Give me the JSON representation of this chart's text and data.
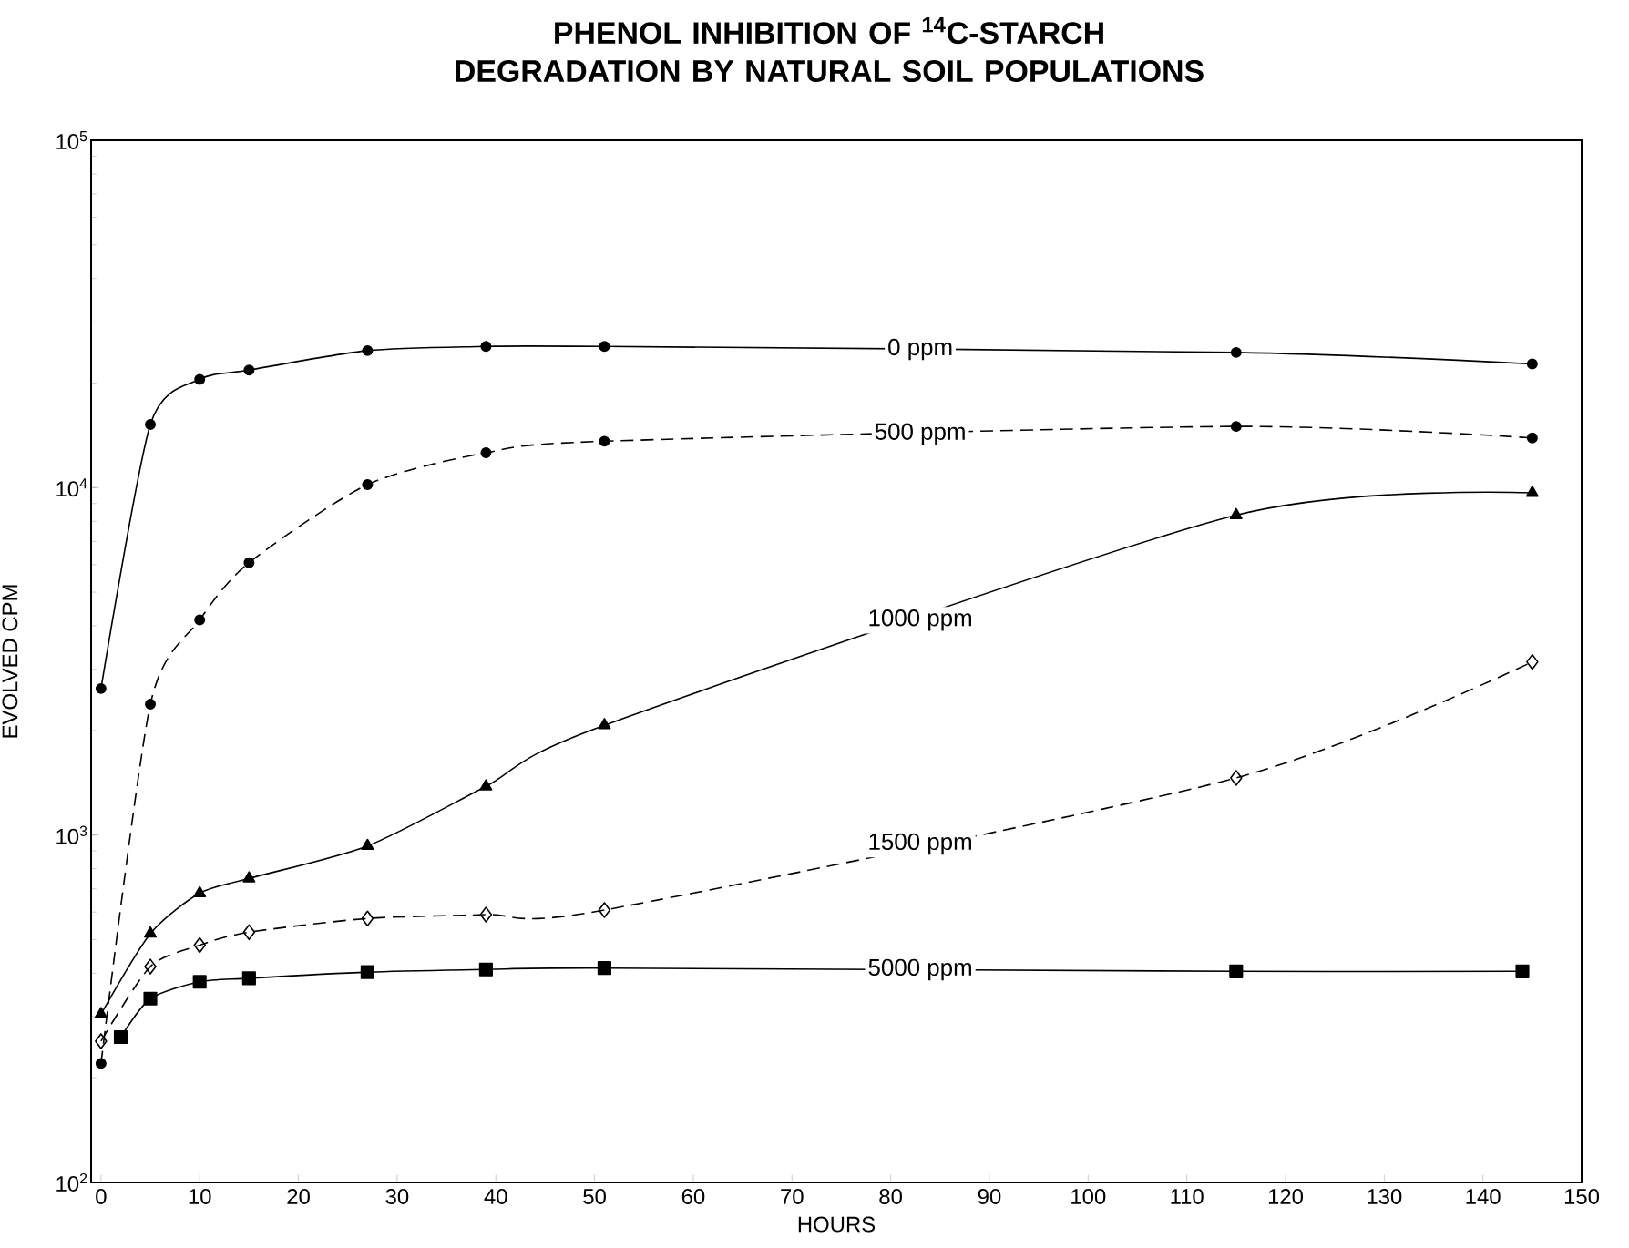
{
  "chart_data": {
    "type": "line",
    "title": "PHENOL INHIBITION OF $^{14}$C-STARCH DEGRADATION BY NATURAL SOIL POPULATIONS",
    "xlabel": "HOURS",
    "ylabel": "EVOLVED CPM",
    "log": "y",
    "grid": false,
    "legend": false,
    "xlim": [
      -1,
      150
    ],
    "xticks": [
      0,
      10,
      20,
      30,
      40,
      50,
      60,
      70,
      80,
      90,
      100,
      110,
      120,
      130,
      140,
      150
    ],
    "ylim": [
      100,
      100000
    ],
    "yticks": [
      {
        "value": 100,
        "label": "10$^{2}$"
      },
      {
        "value": 1000,
        "label": "10$^{3}$"
      },
      {
        "value": 10000,
        "label": "10$^{4}$"
      },
      {
        "value": 100000,
        "label": "10$^{5}$"
      }
    ],
    "series": [
      {
        "name": "0 ppm",
        "color": "#000000",
        "marker": "circle",
        "line_style": "solid",
        "x": [
          0,
          5,
          10,
          15,
          27,
          39,
          51,
          115,
          145
        ],
        "values": [
          2640,
          15200,
          20500,
          21800,
          24800,
          25500,
          25500,
          24500,
          22700
        ]
      },
      {
        "name": "500 ppm",
        "color": "#000000",
        "marker": "circle",
        "line_style": "dashed",
        "x": [
          0,
          5,
          10,
          15,
          27,
          39,
          51,
          115,
          145
        ],
        "values": [
          220,
          2380,
          4160,
          6080,
          10200,
          12600,
          13600,
          15000,
          13900
        ]
      },
      {
        "name": "1000 ppm",
        "color": "#000000",
        "marker": "triangle",
        "line_style": "solid",
        "x": [
          0,
          5,
          10,
          15,
          27,
          39,
          51,
          115,
          145
        ],
        "values": [
          305,
          520,
          680,
          750,
          930,
          1380,
          2070,
          8330,
          9660
        ]
      },
      {
        "name": "1500 ppm",
        "color": "#000000",
        "marker": "diamond",
        "line_style": "dashed",
        "x": [
          0,
          5,
          10,
          15,
          27,
          39,
          51,
          115,
          145
        ],
        "values": [
          255,
          418,
          482,
          525,
          575,
          590,
          608,
          1460,
          3150
        ]
      },
      {
        "name": "5000 ppm",
        "color": "#000000",
        "marker": "square",
        "line_style": "solid",
        "x": [
          2,
          5,
          10,
          15,
          27,
          39,
          51,
          115,
          144
        ],
        "values": [
          262,
          338,
          378,
          387,
          403,
          410,
          414,
          405,
          405
        ]
      }
    ]
  }
}
